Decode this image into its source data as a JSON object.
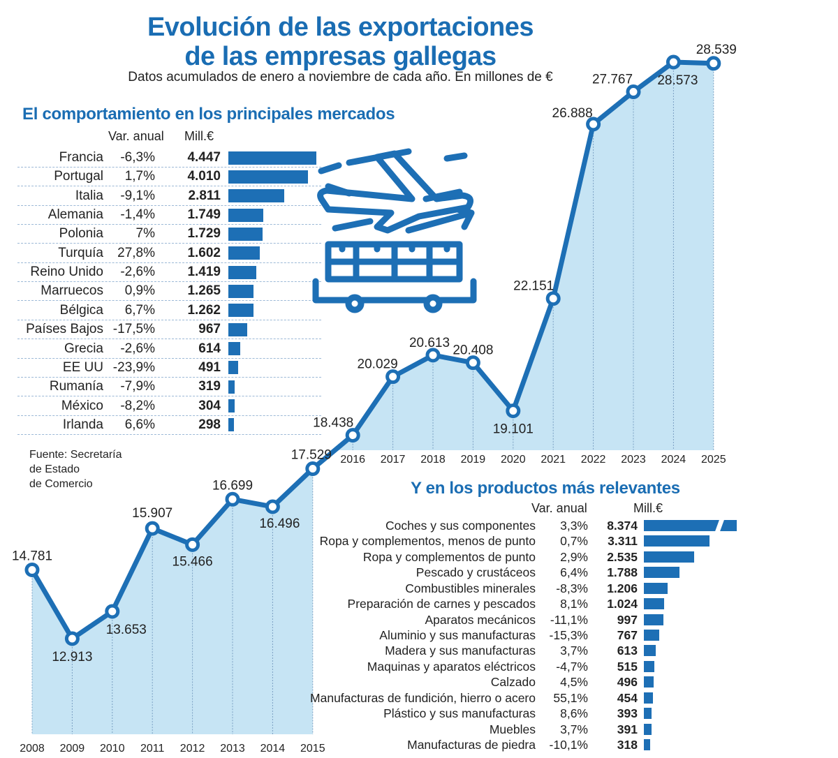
{
  "title_line1": "Evolución de las exportaciones",
  "title_line2": "de las empresas gallegas",
  "subtitle": "Datos acumulados de enero a noviembre de cada año. En millones de €",
  "source": [
    "Fuente: Secretaría",
    "de Estado",
    "de Comercio"
  ],
  "colors": {
    "accent": "#1d6fb5",
    "area_fill": "#c6e4f4",
    "text": "#222222"
  },
  "icon": "airplane-and-cargo-truck-icon",
  "chart_data": [
    {
      "type": "area",
      "x": [
        "2008",
        "2009",
        "2010",
        "2011",
        "2012",
        "2013",
        "2014",
        "2015",
        "2016",
        "2017",
        "2018",
        "2019",
        "2020",
        "2021",
        "2022",
        "2023",
        "2024",
        "2025"
      ],
      "values": [
        14781,
        12913,
        13653,
        15907,
        15466,
        16699,
        16496,
        17529,
        18438,
        20029,
        20613,
        20408,
        19101,
        22151,
        26888,
        27767,
        28573,
        28539
      ],
      "labels": [
        "14.781",
        "12.913",
        "13.653",
        "15.907",
        "15.466",
        "16.699",
        "16.496",
        "17.529",
        "18.438",
        "20.029",
        "20.613",
        "20.408",
        "19.101",
        "22.151",
        "26.888",
        "27.767",
        "28.573",
        "28.539"
      ],
      "title": "Evolución de las exportaciones de las empresas gallegas",
      "grid": false
    },
    {
      "type": "bar",
      "title": "El comportamiento en los principales mercados",
      "headers": {
        "var": "Var. anual",
        "value": "Mill.€"
      },
      "categories": [
        "Francia",
        "Portugal",
        "Italia",
        "Alemania",
        "Polonia",
        "Turquía",
        "Reino Unido",
        "Marruecos",
        "Bélgica",
        "Países Bajos",
        "Grecia",
        "EE UU",
        "Rumanía",
        "México",
        "Irlanda"
      ],
      "var": [
        "-6,3%",
        "1,7%",
        "-9,1%",
        "-1,4%",
        "7%",
        "27,8%",
        "-2,6%",
        "0,9%",
        "6,7%",
        "-17,5%",
        "-2,6%",
        "-23,9%",
        "-7,9%",
        "-8,2%",
        "6,6%"
      ],
      "labels": [
        "4.447",
        "4.010",
        "2.811",
        "1.749",
        "1.729",
        "1.602",
        "1.419",
        "1.265",
        "1.262",
        "967",
        "614",
        "491",
        "319",
        "304",
        "298"
      ],
      "values": [
        4447,
        4010,
        2811,
        1749,
        1729,
        1602,
        1419,
        1265,
        1262,
        967,
        614,
        491,
        319,
        304,
        298
      ]
    },
    {
      "type": "bar",
      "title": "Y en los productos más relevantes",
      "headers": {
        "var": "Var. anual",
        "value": "Mill.€"
      },
      "categories": [
        "Coches y sus componentes",
        "Ropa y complementos, menos de punto",
        "Ropa y complementos de punto",
        "Pescado y crustáceos",
        "Combustibles minerales",
        "Preparación de carnes y pescados",
        "Aparatos mecánicos",
        "Aluminio y sus manufacturas",
        "Madera y sus manufacturas",
        "Maquinas y aparatos eléctricos",
        "Calzado",
        "Manufacturas de fundición, hierro o acero",
        "Plástico y sus manufacturas",
        "Muebles",
        "Manufacturas de piedra"
      ],
      "var": [
        "3,3%",
        "0,7%",
        "2,9%",
        "6,4%",
        "-8,3%",
        "8,1%",
        "-11,1%",
        "-15,3%",
        "3,7%",
        "-4,7%",
        "4,5%",
        "55,1%",
        "8,6%",
        "3,7%",
        "-10,1%"
      ],
      "labels": [
        "8.374",
        "3.311",
        "2.535",
        "1.788",
        "1.206",
        "1.024",
        "997",
        "767",
        "613",
        "515",
        "496",
        "454",
        "393",
        "391",
        "318"
      ],
      "values": [
        8374,
        3311,
        2535,
        1788,
        1206,
        1024,
        997,
        767,
        613,
        515,
        496,
        454,
        393,
        391,
        318
      ],
      "broken_axis_first_bar": true
    }
  ]
}
